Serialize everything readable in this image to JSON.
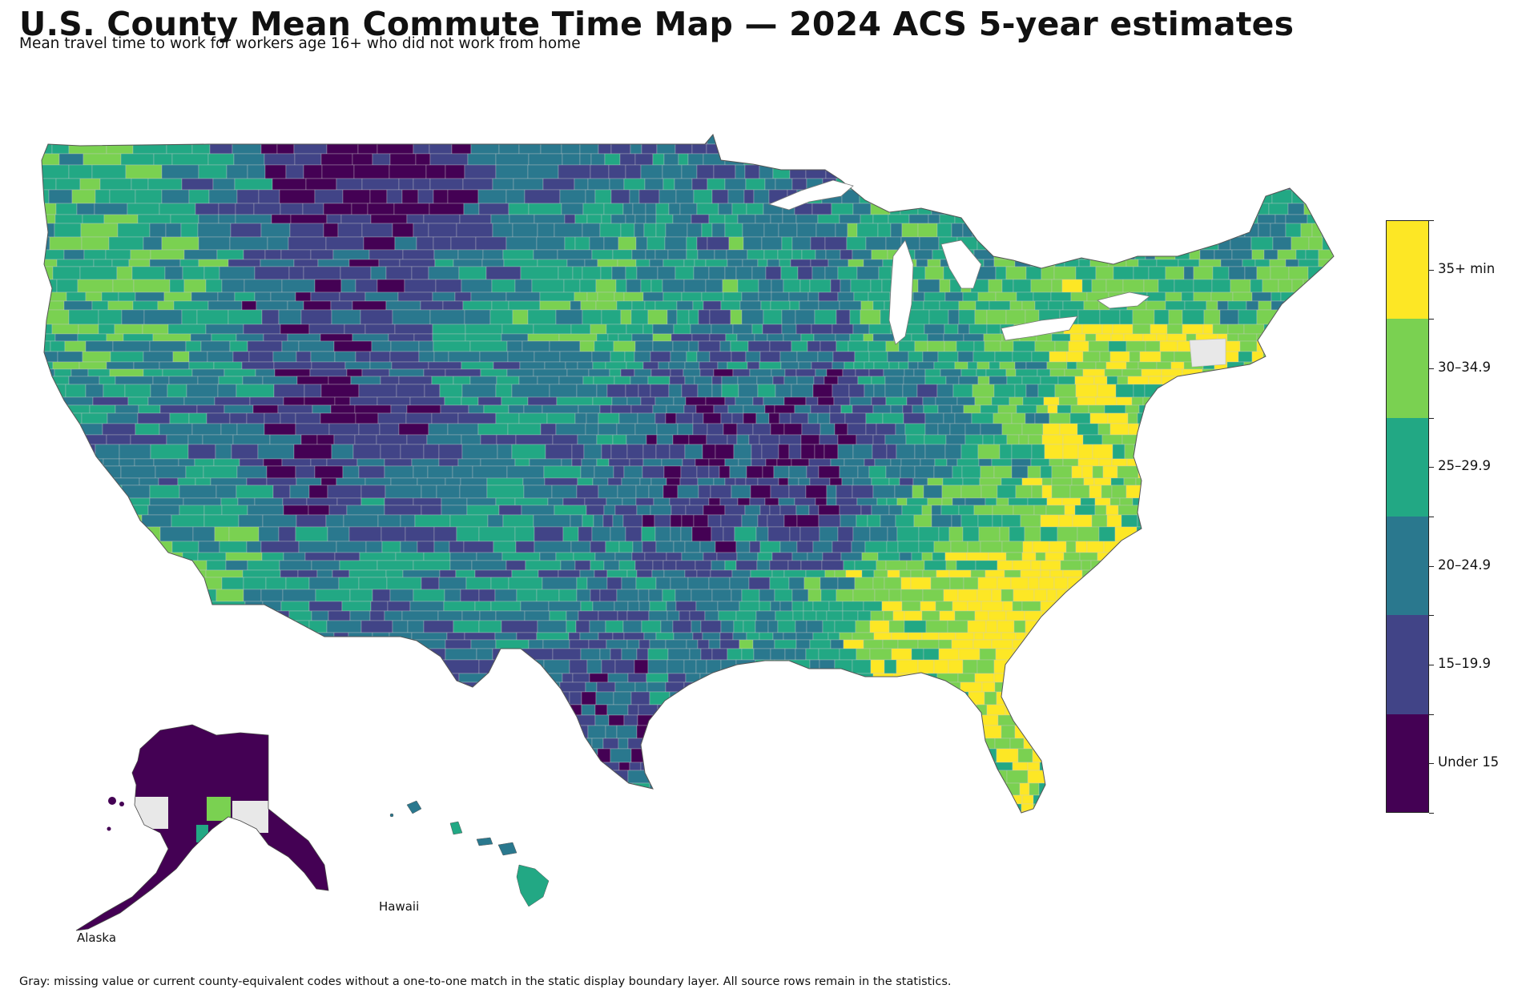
{
  "title": "U.S. County Mean Commute Time Map — 2024 ACS 5-year estimates",
  "subtitle": "Mean travel time to work for workers age 16+ who did not work from home",
  "footnote": "Gray: missing value or current county-equivalent codes without a one-to-one match in the static display boundary layer. All source rows remain in the statistics.",
  "insets": {
    "alaska_label": "Alaska",
    "hawaii_label": "Hawaii"
  },
  "legend": {
    "classes": [
      {
        "label": "35+ min",
        "color": "#fde725"
      },
      {
        "label": "30–34.9",
        "color": "#7ad151"
      },
      {
        "label": "25–29.9",
        "color": "#22a884"
      },
      {
        "label": "20–24.9",
        "color": "#2a788e"
      },
      {
        "label": "15–19.9",
        "color": "#414487"
      },
      {
        "label": "Under 15",
        "color": "#440154"
      }
    ],
    "missing_color": "#e8e8e8"
  }
}
